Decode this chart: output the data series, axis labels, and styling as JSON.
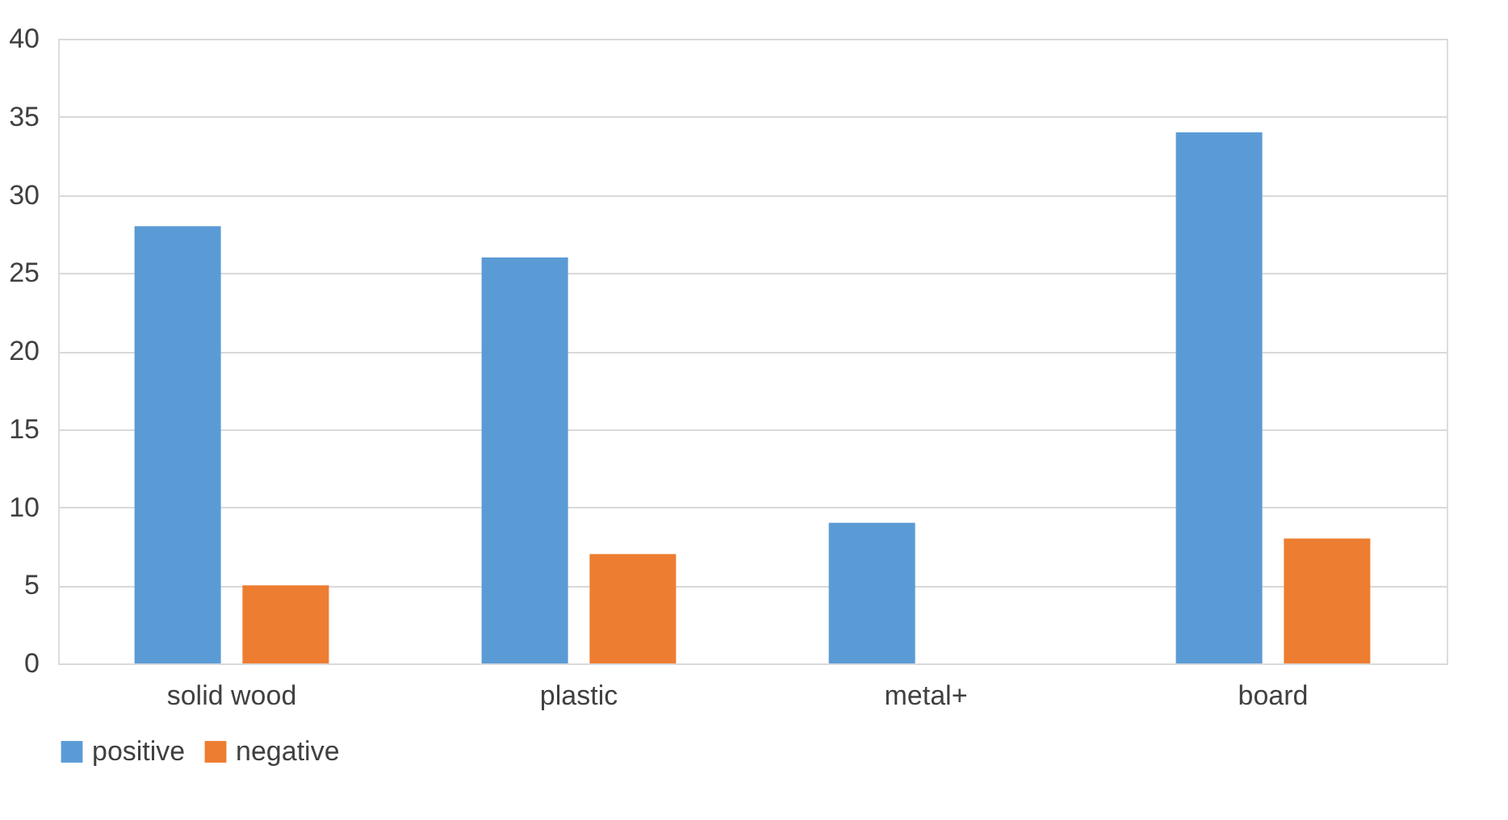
{
  "chart_data": {
    "type": "bar",
    "categories": [
      "solid wood",
      "plastic",
      "metal+",
      "board"
    ],
    "series": [
      {
        "name": "positive",
        "color": "#5b9bd5",
        "values": [
          28,
          26,
          9,
          34
        ]
      },
      {
        "name": "negative",
        "color": "#ed7d31",
        "values": [
          5,
          7,
          0,
          8
        ]
      }
    ],
    "ylim": [
      0,
      40
    ],
    "yticks": [
      0,
      5,
      10,
      15,
      20,
      25,
      30,
      35,
      40
    ],
    "grid": "y",
    "legend": "bottom"
  }
}
